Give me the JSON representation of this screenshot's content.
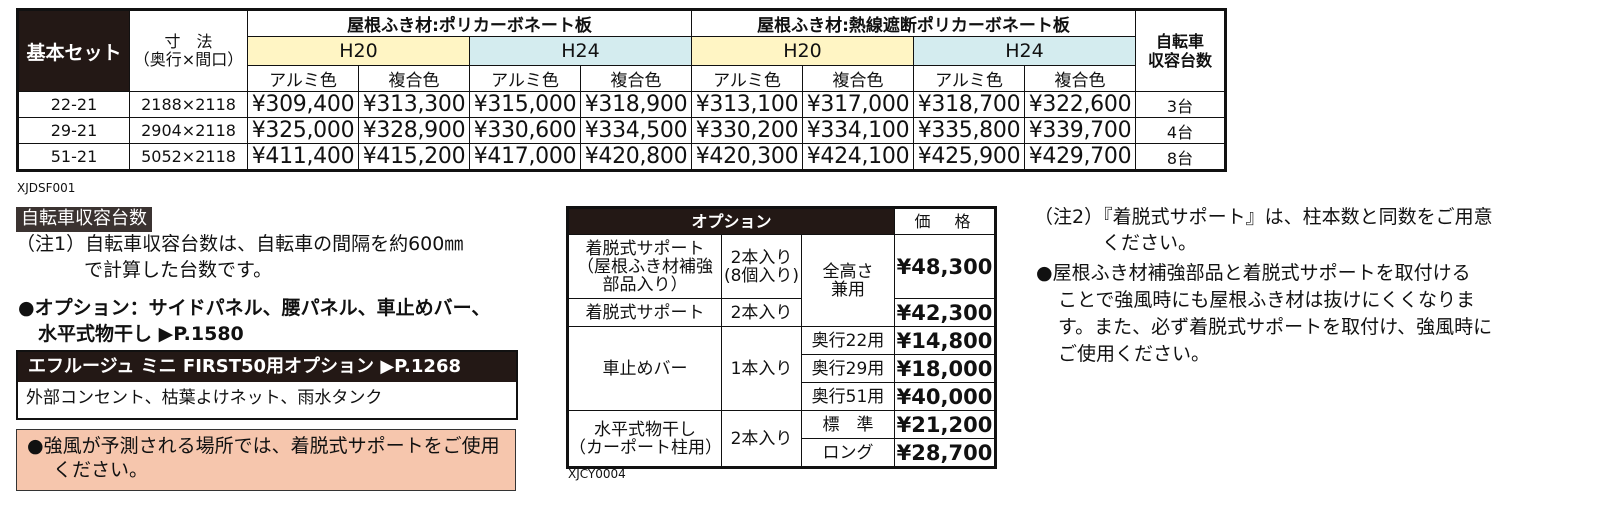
{
  "price_table": {
    "set_label": "基本セット",
    "size_label_1": "寸　法",
    "size_label_2": "（奥行×間口）",
    "group1": "屋根ふき材:ポリカーボネート板",
    "group2": "屋根ふき材:熱線遮断ポリカーボネート板",
    "h20": "H20",
    "h24": "H24",
    "alumi": "アルミ色",
    "fukugo": "複合色",
    "bike_label_1": "自転車",
    "bike_label_2": "収容台数",
    "rows": [
      {
        "set": "22-21",
        "size": "2188×2118",
        "p": [
          "¥309,400",
          "¥313,300",
          "¥315,000",
          "¥318,900",
          "¥313,100",
          "¥317,000",
          "¥318,700",
          "¥322,600"
        ],
        "count": "3台"
      },
      {
        "set": "29-21",
        "size": "2904×2118",
        "p": [
          "¥325,000",
          "¥328,900",
          "¥330,600",
          "¥334,500",
          "¥330,200",
          "¥334,100",
          "¥335,800",
          "¥339,700"
        ],
        "count": "4台"
      },
      {
        "set": "51-21",
        "size": "5052×2118",
        "p": [
          "¥411,400",
          "¥415,200",
          "¥417,000",
          "¥420,800",
          "¥420,300",
          "¥424,100",
          "¥425,900",
          "¥429,700"
        ],
        "count": "8台"
      }
    ],
    "code": "XJDSF001"
  },
  "left": {
    "section_head": "自転車収容台数",
    "note1_a": "（注1）自転車収容台数は、自転車の間隔を約600㎜",
    "note1_b": "で計算した台数です。",
    "option_a": "●オプション：サイドパネル、腰パネル、車止めバー、",
    "option_b": "水平式物干し ▶P.1580",
    "first_head": "エフルージュ ミニ FIRST50用オプション ▶P.1268",
    "first_body": "外部コンセント、枯葉よけネット、雨水タンク",
    "warn_a": "●強風が予測される場所では、着脱式サポートをご使用",
    "warn_b": "ください。"
  },
  "option_table": {
    "head": "オプション",
    "price_head": "価　格",
    "r1_name_1": "着脱式サポート",
    "r1_name_2": "（屋根ふき材補強",
    "r1_name_3": "部品入り）",
    "r1_qty_1": "2本入り",
    "r1_qty_2": "(8個入り)",
    "height_1": "全高さ",
    "height_2": "兼用",
    "r1_price": "¥48,300",
    "r2_name": "着脱式サポート",
    "r2_qty": "2本入り",
    "r2_price": "¥42,300",
    "stop_name": "車止めバー",
    "stop_qty": "1本入り",
    "stop_rows": [
      {
        "spec": "奥行22用",
        "price": "¥14,800"
      },
      {
        "spec": "奥行29用",
        "price": "¥18,000"
      },
      {
        "spec": "奥行51用",
        "price": "¥40,000"
      }
    ],
    "dry_name_1": "水平式物干し",
    "dry_name_2": "（カーポート柱用）",
    "dry_qty": "2本入り",
    "dry_rows": [
      {
        "spec": "標　準",
        "price": "¥21,200"
      },
      {
        "spec": "ロング",
        "price": "¥28,700"
      }
    ],
    "code": "XJCY0004"
  },
  "right": {
    "note2_a": "（注2）『着脱式サポート』は、柱本数と同数をご用意",
    "note2_b": "ください。",
    "b1": "●屋根ふき材補強部品と着脱式サポートを取付ける",
    "b2": "ことで強風時にも屋根ふき材は抜けにくくなりま",
    "b3": "す。また、必ず着脱式サポートを取付け、強風時に",
    "b4": "ご使用ください。"
  }
}
